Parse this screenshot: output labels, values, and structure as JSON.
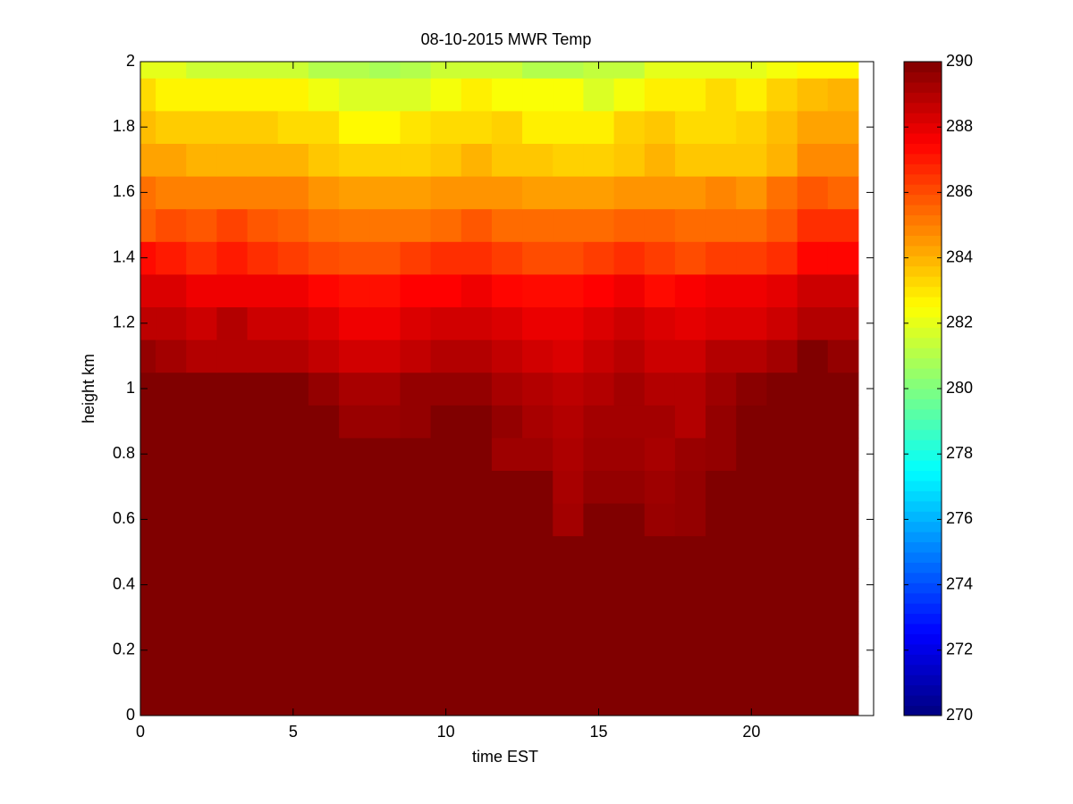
{
  "chart_data": {
    "type": "heatmap",
    "title": "08-10-2015 MWR Temp",
    "xlabel": "time EST",
    "ylabel": "height km",
    "x": [
      0,
      1,
      2,
      3,
      4,
      5,
      6,
      7,
      8,
      9,
      10,
      11,
      12,
      13,
      14,
      15,
      16,
      17,
      18,
      19,
      20,
      21,
      22,
      23
    ],
    "y": [
      0,
      0.1,
      0.2,
      0.3,
      0.4,
      0.5,
      0.6,
      0.7,
      0.8,
      0.9,
      1.0,
      1.1,
      1.2,
      1.3,
      1.4,
      1.5,
      1.6,
      1.7,
      1.8,
      1.9,
      2.0
    ],
    "values": [
      [
        290,
        290,
        290,
        290,
        290,
        290,
        290,
        290,
        290,
        290,
        290,
        290,
        290,
        290,
        290,
        290,
        290,
        290,
        290,
        290,
        290,
        290,
        290,
        290
      ],
      [
        290,
        290,
        290,
        290,
        290,
        290,
        290,
        290,
        290,
        290,
        290,
        290,
        290,
        290,
        290,
        290,
        290,
        290,
        290,
        290,
        290,
        290,
        290,
        290
      ],
      [
        290,
        290,
        290,
        290,
        290,
        290,
        290,
        290,
        290,
        290,
        290,
        290,
        290,
        290,
        290,
        290,
        290,
        290,
        290,
        290,
        290,
        290,
        290,
        290
      ],
      [
        290,
        290,
        290,
        290,
        290,
        290,
        290,
        290,
        290,
        290,
        290,
        290,
        290,
        290,
        290,
        290,
        290,
        290,
        290,
        290,
        290,
        290,
        290,
        290
      ],
      [
        290,
        290,
        290,
        290,
        290,
        290,
        290,
        290,
        290,
        290,
        290,
        290,
        290,
        290,
        290,
        290,
        290,
        290,
        290,
        290,
        290,
        290,
        290,
        290
      ],
      [
        290,
        290,
        290,
        290,
        290,
        290,
        290,
        290,
        290,
        290,
        290,
        290,
        290,
        290,
        290,
        290,
        290,
        290,
        290,
        290,
        290,
        290,
        290,
        290
      ],
      [
        290,
        290,
        290,
        290,
        290,
        290,
        290,
        290,
        290,
        290,
        290,
        290,
        290,
        290,
        289.3,
        290,
        290,
        289.5,
        289.6,
        290,
        290,
        290,
        290,
        290
      ],
      [
        290,
        290,
        290,
        290,
        290,
        290,
        290,
        290,
        290,
        290,
        290,
        290,
        290,
        290,
        289.2,
        289.6,
        289.6,
        289.4,
        289.6,
        290,
        290,
        290,
        290,
        290
      ],
      [
        290,
        290,
        290,
        290,
        290,
        290,
        290,
        290,
        290,
        290,
        290,
        290,
        289.4,
        289.4,
        289.1,
        289.4,
        289.4,
        289.2,
        289.5,
        289.6,
        290,
        290,
        290,
        290
      ],
      [
        290,
        290,
        290,
        290,
        290,
        290,
        290,
        289.5,
        289.5,
        289.6,
        290,
        290,
        289.6,
        289.2,
        289,
        289.3,
        289.3,
        289.3,
        289,
        289.6,
        290,
        290,
        290,
        290
      ],
      [
        290,
        290,
        290,
        290,
        290,
        290,
        289.6,
        289.2,
        289.2,
        289.6,
        289.6,
        289.6,
        289.2,
        289,
        288.8,
        289,
        289.3,
        289,
        289,
        289.4,
        289.8,
        290,
        290,
        290
      ],
      [
        289.6,
        289.3,
        289,
        289,
        289,
        289,
        288.7,
        288.4,
        288.4,
        288.7,
        289,
        289,
        288.7,
        288.4,
        288.2,
        288.6,
        288.9,
        288.5,
        288.5,
        289,
        289,
        289.3,
        290,
        289.6
      ],
      [
        288.8,
        288.8,
        288.5,
        289,
        288.5,
        288.5,
        288.2,
        287.8,
        287.8,
        288.2,
        288.4,
        288.4,
        288.2,
        287.9,
        287.9,
        288.2,
        288.5,
        288.2,
        288,
        288.2,
        288.2,
        288.5,
        289,
        289
      ],
      [
        288.2,
        288.2,
        287.8,
        287.8,
        287.8,
        287.8,
        287.4,
        287.2,
        287.2,
        287.5,
        287.5,
        287.8,
        287.4,
        287.3,
        287.3,
        287.5,
        287.8,
        287.3,
        287.6,
        287.8,
        287.8,
        288,
        288.5,
        288.5
      ],
      [
        287.3,
        287,
        286.6,
        287,
        286.6,
        286.3,
        286,
        285.9,
        285.9,
        286.3,
        286.6,
        286.6,
        286.3,
        286,
        286,
        286.3,
        286.6,
        286.3,
        286,
        286.3,
        286.3,
        286.6,
        287.4,
        287.4
      ],
      [
        285.6,
        286,
        285.8,
        286.2,
        285.8,
        285.6,
        285.3,
        285.2,
        285.2,
        285.2,
        285.4,
        285.8,
        285.4,
        285.4,
        285.4,
        285.4,
        285.6,
        285.6,
        285.4,
        285.4,
        285.4,
        285.8,
        286.6,
        286.6
      ],
      [
        285.3,
        285,
        285,
        285,
        285,
        285,
        284.6,
        284.4,
        284.4,
        284.4,
        284.6,
        284.6,
        284.6,
        284.4,
        284.4,
        284.4,
        284.6,
        284.6,
        284.6,
        284.9,
        284.6,
        285.3,
        285.8,
        285.5
      ],
      [
        284.3,
        284.3,
        284,
        284,
        284,
        284,
        283.6,
        283.4,
        283.4,
        283.4,
        283.6,
        284,
        283.6,
        283.6,
        283.4,
        283.4,
        283.6,
        284,
        283.6,
        283.6,
        283.6,
        284,
        284.8,
        284.8
      ],
      [
        283.8,
        283.5,
        283.5,
        283.5,
        283.5,
        283.2,
        283.2,
        282.6,
        282.6,
        283,
        283.2,
        283.2,
        283.4,
        282.8,
        282.8,
        282.8,
        283.4,
        283.6,
        283.2,
        283.2,
        283.4,
        283.8,
        284.3,
        284.3
      ],
      [
        283.2,
        282.7,
        282.7,
        282.7,
        282.7,
        282.7,
        282.2,
        281.8,
        281.8,
        281.8,
        282.3,
        282.8,
        282.4,
        282.4,
        282.4,
        281.8,
        282.3,
        282.8,
        282.8,
        283.2,
        282.8,
        283.4,
        283.8,
        284
      ],
      [
        282,
        282,
        281.5,
        281.5,
        281.5,
        281.5,
        281,
        281,
        280.8,
        281,
        281.5,
        281.5,
        281.5,
        281,
        281,
        281.3,
        281.3,
        282,
        282,
        282,
        282,
        282.3,
        282.6,
        282.6
      ]
    ],
    "xlim": [
      0,
      24
    ],
    "xticks": [
      0,
      5,
      10,
      15,
      20
    ],
    "ylim": [
      0,
      2
    ],
    "yticks": [
      0,
      0.2,
      0.4,
      0.6,
      0.8,
      1,
      1.2,
      1.4,
      1.6,
      1.8,
      2
    ],
    "colormap": "jet",
    "clim": [
      270,
      290
    ],
    "colorbar_ticks": [
      270,
      272,
      274,
      276,
      278,
      280,
      282,
      284,
      286,
      288,
      290
    ]
  }
}
